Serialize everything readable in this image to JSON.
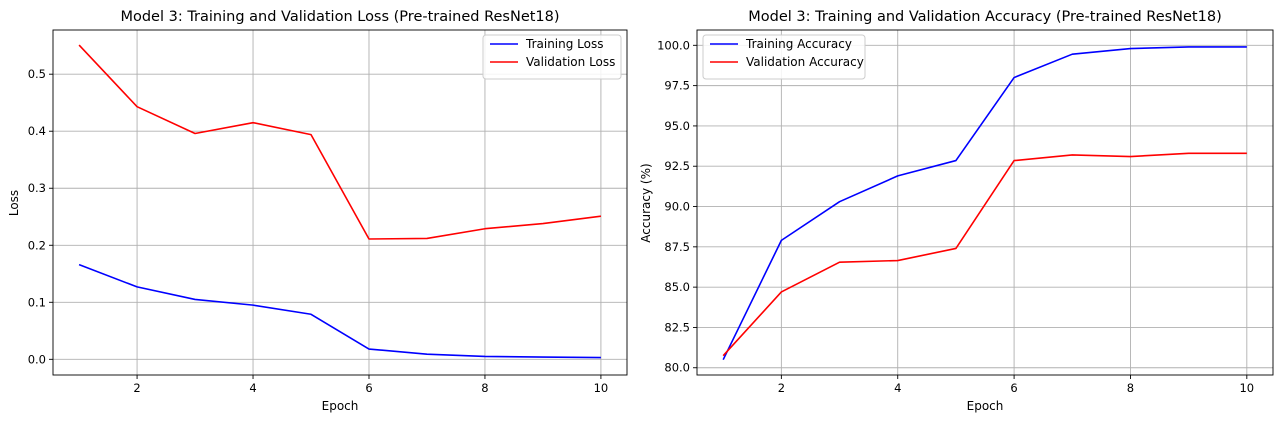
{
  "chart_data": [
    {
      "type": "line",
      "title": "Model 3: Training and Validation Loss (Pre-trained ResNet18)",
      "xlabel": "Epoch",
      "ylabel": "Loss",
      "x": [
        1,
        2,
        3,
        4,
        5,
        6,
        7,
        8,
        9,
        10
      ],
      "xlim": [
        0.55,
        10.45
      ],
      "ylim": [
        -0.0275,
        0.5775
      ],
      "xticks": [
        2,
        4,
        6,
        8,
        10
      ],
      "yticks": [
        0.0,
        0.1,
        0.2,
        0.3,
        0.4,
        0.5
      ],
      "ytick_labels": [
        "0.0",
        "0.1",
        "0.2",
        "0.3",
        "0.4",
        "0.5"
      ],
      "grid": true,
      "legend_position": "top-right",
      "series": [
        {
          "name": "Training Loss",
          "color": "#0000ff",
          "values": [
            0.166,
            0.127,
            0.105,
            0.095,
            0.079,
            0.018,
            0.009,
            0.005,
            0.004,
            0.003
          ]
        },
        {
          "name": "Validation Loss",
          "color": "#ff0000",
          "values": [
            0.551,
            0.443,
            0.396,
            0.415,
            0.394,
            0.211,
            0.212,
            0.229,
            0.238,
            0.251
          ]
        }
      ]
    },
    {
      "type": "line",
      "title": "Model 3: Training and Validation Accuracy (Pre-trained ResNet18)",
      "xlabel": "Epoch",
      "ylabel": "Accuracy (%)",
      "x": [
        1,
        2,
        3,
        4,
        5,
        6,
        7,
        8,
        9,
        10
      ],
      "xlim": [
        0.55,
        10.45
      ],
      "ylim": [
        79.55,
        100.95
      ],
      "xticks": [
        2,
        4,
        6,
        8,
        10
      ],
      "yticks": [
        80.0,
        82.5,
        85.0,
        87.5,
        90.0,
        92.5,
        95.0,
        97.5,
        100.0
      ],
      "ytick_labels": [
        "80.0",
        "82.5",
        "85.0",
        "87.5",
        "90.0",
        "92.5",
        "95.0",
        "97.5",
        "100.0"
      ],
      "grid": true,
      "legend_position": "top-left",
      "series": [
        {
          "name": "Training Accuracy",
          "color": "#0000ff",
          "values": [
            80.5,
            87.9,
            90.3,
            91.9,
            92.85,
            98.0,
            99.45,
            99.8,
            99.9,
            99.9
          ]
        },
        {
          "name": "Validation Accuracy",
          "color": "#ff0000",
          "values": [
            80.75,
            84.7,
            86.55,
            86.65,
            87.4,
            92.85,
            93.2,
            93.1,
            93.3,
            93.3
          ]
        }
      ]
    }
  ]
}
